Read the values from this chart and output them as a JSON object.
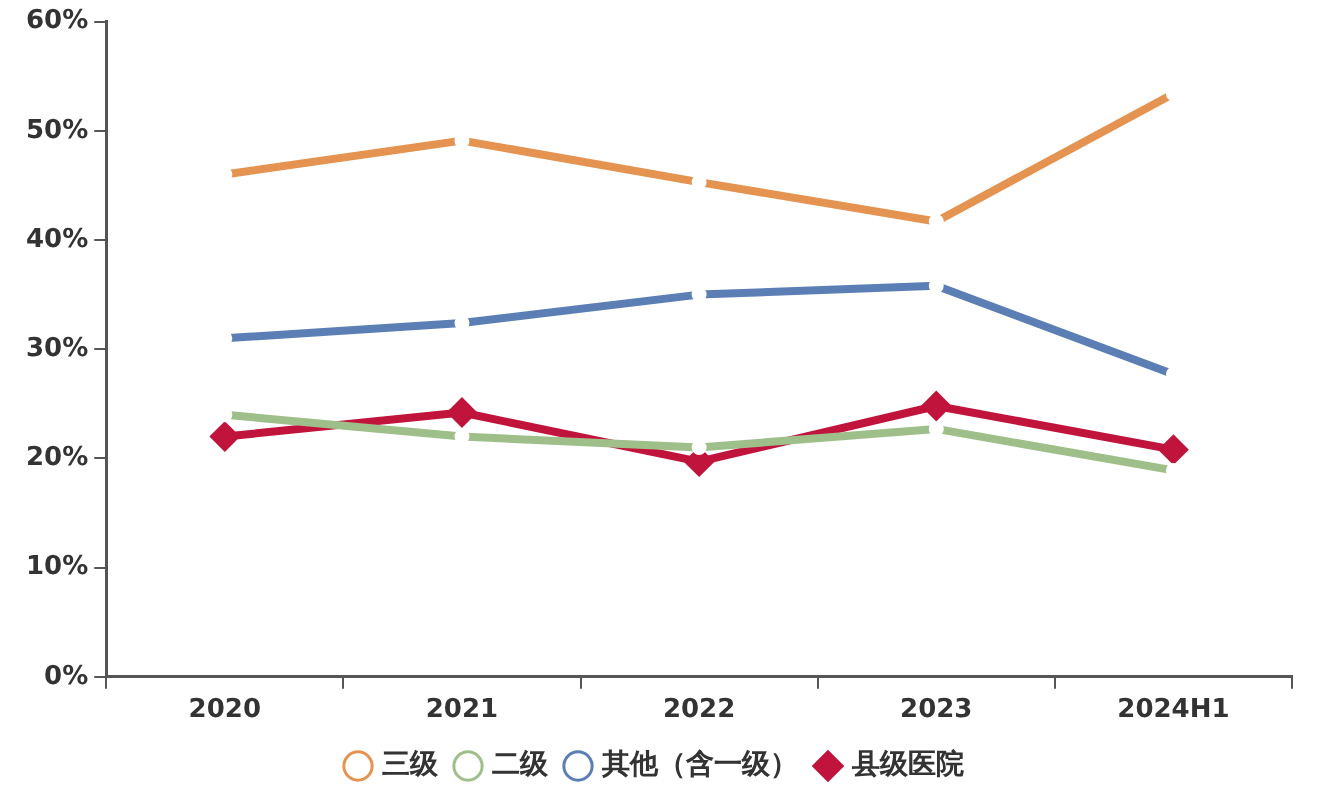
{
  "chart_data": {
    "type": "line",
    "categories": [
      "2020",
      "2021",
      "2022",
      "2023",
      "2024H1"
    ],
    "series": [
      {
        "name": "三级",
        "color": "#e59350",
        "marker": "circle",
        "values": [
          46.0,
          49.1,
          45.3,
          41.7,
          53.4
        ]
      },
      {
        "name": "二级",
        "color": "#9fbf8a",
        "marker": "circle",
        "values": [
          24.0,
          22.0,
          21.0,
          22.7,
          18.9
        ]
      },
      {
        "name": "其他（含一级）",
        "color": "#5b7fb5",
        "marker": "circle",
        "values": [
          31.0,
          32.4,
          35.0,
          35.8,
          27.7
        ]
      },
      {
        "name": "县级医院",
        "color": "#c0143c",
        "marker": "diamond",
        "values": [
          22.0,
          24.2,
          19.7,
          24.8,
          20.8
        ]
      }
    ],
    "ylim": [
      0,
      60
    ],
    "yticks": [
      {
        "value": 0,
        "label": "0%"
      },
      {
        "value": 10,
        "label": "10%"
      },
      {
        "value": 20,
        "label": "20%"
      },
      {
        "value": 30,
        "label": "30%"
      },
      {
        "value": 40,
        "label": "40%"
      },
      {
        "value": 50,
        "label": "50%"
      },
      {
        "value": 60,
        "label": "60%"
      }
    ],
    "grid": false,
    "legend": "bottom",
    "line_style": "solid"
  }
}
